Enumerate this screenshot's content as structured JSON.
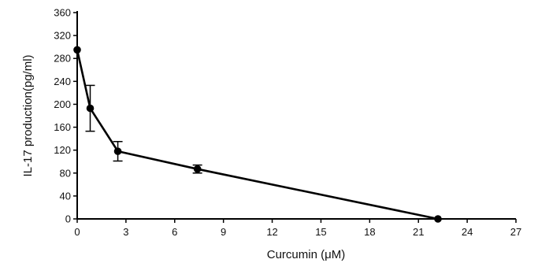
{
  "chart_data": {
    "type": "line",
    "title": "",
    "xlabel": "Curcumin (μM)",
    "ylabel": "IL-17 production(pg/ml)",
    "xlim": [
      0,
      27
    ],
    "ylim": [
      0,
      360
    ],
    "x_ticks": [
      "0",
      "3",
      "6",
      "9",
      "12",
      "15",
      "18",
      "21",
      "24",
      "27"
    ],
    "y_ticks": [
      "0",
      "40",
      "80",
      "120",
      "160",
      "200",
      "240",
      "280",
      "320",
      "360"
    ],
    "grid": false,
    "legend": "none",
    "series": [
      {
        "x": [
          0,
          0.8,
          2.5,
          7.4,
          22.2
        ],
        "y": [
          295,
          193,
          118,
          87,
          0
        ],
        "error": [
          0,
          40,
          17,
          7,
          0
        ]
      }
    ],
    "colors": {
      "line": "#000000",
      "axis": "#000000"
    }
  }
}
